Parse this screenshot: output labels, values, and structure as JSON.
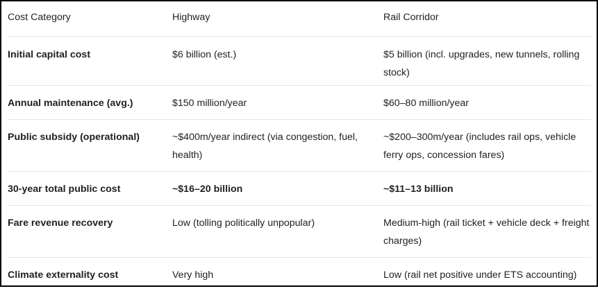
{
  "table": {
    "headers": [
      "Cost Category",
      "Highway",
      "Rail Corridor"
    ],
    "rows": [
      {
        "category": "Initial capital cost",
        "highway": "$6 billion (est.)",
        "rail": "$5 billion (incl. upgrades, new tunnels, rolling stock)"
      },
      {
        "category": "Annual maintenance (avg.)",
        "highway": "$150 million/year",
        "rail": "$60–80 million/year"
      },
      {
        "category": "Public subsidy (operational)",
        "highway": "~$400m/year indirect (via congestion, fuel, health)",
        "rail": "~$200–300m/year (includes rail ops, vehicle ferry ops, concession fares)"
      },
      {
        "category": "30-year total public cost",
        "highway": "~$16–20 billion",
        "rail": "~$11–13 billion"
      },
      {
        "category": "Fare revenue recovery",
        "highway": "Low (tolling politically unpopular)",
        "rail": "Medium-high (rail ticket + vehicle deck + freight charges)"
      },
      {
        "category": "Climate externality cost",
        "highway": "Very high",
        "rail": "Low (rail net positive under ETS accounting)"
      }
    ]
  }
}
